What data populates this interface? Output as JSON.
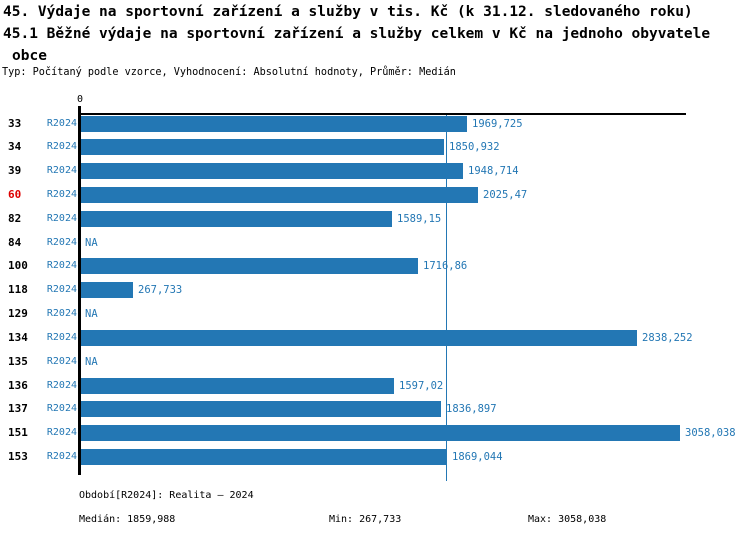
{
  "title": {
    "line1": "45. Výdaje na sportovní zařízení a služby v tis. Kč (k 31.12. sledovaného roku)",
    "line2": "45.1 Běžné výdaje na sportovní zařízení a služby celkem v Kč na jednoho obyvatele",
    "line3": "obce",
    "meta": "Typ: Počítaný podle vzorce, Vyhodnocení: Absolutní hodnoty, Průměr: Medián"
  },
  "chart_data": {
    "type": "bar",
    "orientation": "horizontal",
    "x_axis": {
      "ticks": [
        "0"
      ],
      "range": [
        0,
        3095
      ],
      "tick_position": "top"
    },
    "rows": [
      {
        "id": "33",
        "period": "R2024",
        "value": 1969.725,
        "label": "1969,725",
        "highlight": false
      },
      {
        "id": "34",
        "period": "R2024",
        "value": 1850.932,
        "label": "1850,932",
        "highlight": false
      },
      {
        "id": "39",
        "period": "R2024",
        "value": 1948.714,
        "label": "1948,714",
        "highlight": false
      },
      {
        "id": "60",
        "period": "R2024",
        "value": 2025.47,
        "label": "2025,47",
        "highlight": true
      },
      {
        "id": "82",
        "period": "R2024",
        "value": 1589.15,
        "label": "1589,15",
        "highlight": false
      },
      {
        "id": "84",
        "period": "R2024",
        "value": null,
        "label": "NA",
        "highlight": false
      },
      {
        "id": "100",
        "period": "R2024",
        "value": 1716.86,
        "label": "1716,86",
        "highlight": false
      },
      {
        "id": "118",
        "period": "R2024",
        "value": 267.733,
        "label": "267,733",
        "highlight": false
      },
      {
        "id": "129",
        "period": "R2024",
        "value": null,
        "label": "NA",
        "highlight": false
      },
      {
        "id": "134",
        "period": "R2024",
        "value": 2838.252,
        "label": "2838,252",
        "highlight": false
      },
      {
        "id": "135",
        "period": "R2024",
        "value": null,
        "label": "NA",
        "highlight": false
      },
      {
        "id": "136",
        "period": "R2024",
        "value": 1597.02,
        "label": "1597,02",
        "highlight": false
      },
      {
        "id": "137",
        "period": "R2024",
        "value": 1836.897,
        "label": "1836,897",
        "highlight": false
      },
      {
        "id": "151",
        "period": "R2024",
        "value": 3058.038,
        "label": "3058,038",
        "highlight": false
      },
      {
        "id": "153",
        "period": "R2024",
        "value": 1869.044,
        "label": "1869,044",
        "highlight": false
      }
    ],
    "median_line": {
      "value": 1859.988
    },
    "colors": {
      "bar": "#2377b4",
      "accent_text": "#2377b4",
      "highlight_text": "#dd0000",
      "axis": "#000000"
    }
  },
  "footer": {
    "period": "Období[R2024]: Realita – 2024",
    "median": "Medián: 1859,988",
    "min": "Min: 267,733",
    "max": "Max: 3058,038"
  }
}
